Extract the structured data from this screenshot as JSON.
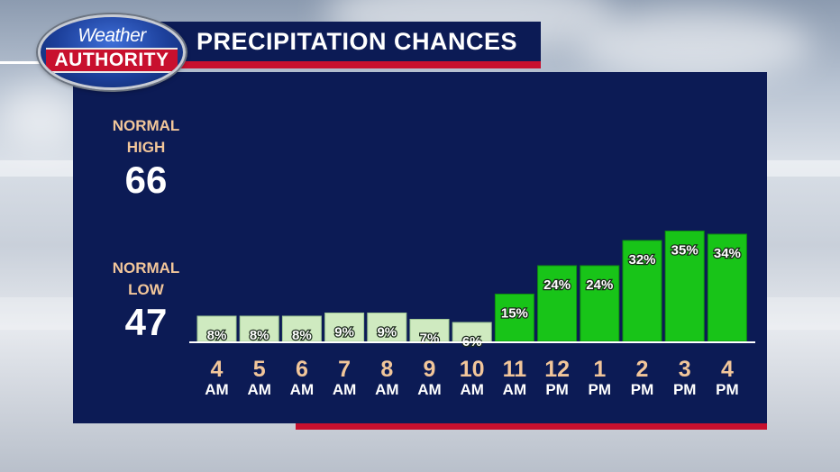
{
  "logo": {
    "line1": "Weather",
    "line2": "AUTHORITY"
  },
  "header": {
    "title": "PRECIPITATION CHANCES"
  },
  "normals": {
    "high": {
      "label_1": "NORMAL",
      "label_2": "HIGH",
      "value": "66"
    },
    "low": {
      "label_1": "NORMAL",
      "label_2": "LOW",
      "value": "47"
    }
  },
  "colors": {
    "panel": "#0c1b55",
    "accent_red": "#c8102e",
    "bar_low": "#cfeac0",
    "bar_high": "#18c418",
    "hour_label": "#f2c69a",
    "period_label": "#ffffff"
  },
  "chart_data": {
    "type": "bar",
    "title": "PRECIPITATION CHANCES",
    "xlabel": "",
    "ylabel": "",
    "ylim": [
      0,
      40
    ],
    "grid": false,
    "categories": [
      "4 AM",
      "5 AM",
      "6 AM",
      "7 AM",
      "8 AM",
      "9 AM",
      "10 AM",
      "11 AM",
      "12 PM",
      "1 PM",
      "2 PM",
      "3 PM",
      "4 PM"
    ],
    "hours": [
      "4",
      "5",
      "6",
      "7",
      "8",
      "9",
      "10",
      "11",
      "12",
      "1",
      "2",
      "3",
      "4"
    ],
    "periods": [
      "AM",
      "AM",
      "AM",
      "AM",
      "AM",
      "AM",
      "AM",
      "AM",
      "PM",
      "PM",
      "PM",
      "PM",
      "PM"
    ],
    "values": [
      8,
      8,
      8,
      9,
      9,
      7,
      6,
      15,
      24,
      24,
      32,
      35,
      34
    ],
    "labels": [
      "8%",
      "8%",
      "8%",
      "9%",
      "9%",
      "7%",
      "6%",
      "15%",
      "24%",
      "24%",
      "32%",
      "35%",
      "34%"
    ]
  }
}
